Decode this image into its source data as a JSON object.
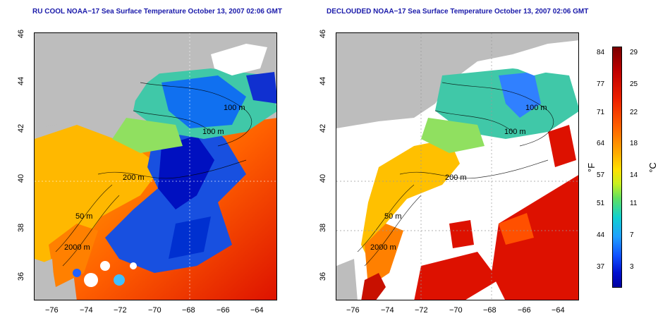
{
  "panels": [
    {
      "title": "RU COOL NOAA−17 Sea Surface Temperature October 13, 2007 02:06 GMT"
    },
    {
      "title": "DECLOUDED NOAA−17 Sea Surface Temperature October 13, 2007 02:06 GMT"
    }
  ],
  "x_ticks": [
    "−76",
    "−74",
    "−72",
    "−70",
    "−68",
    "−66",
    "−64"
  ],
  "y_ticks": [
    "46",
    "44",
    "42",
    "40",
    "38",
    "36"
  ],
  "contours": {
    "c100": "100 m",
    "c100b": "100 m",
    "c200": "200 m",
    "c50": "50 m",
    "c2000": "2000 m"
  },
  "colorbar": {
    "fahrenheit_label": "°F",
    "celsius_label": "°C",
    "fahrenheit_ticks": [
      "84",
      "77",
      "71",
      "64",
      "57",
      "51",
      "44",
      "37"
    ],
    "celsius_ticks": [
      "29",
      "25",
      "22",
      "18",
      "14",
      "11",
      "7",
      "3"
    ]
  },
  "colors": {
    "land": "#bdbdbd",
    "title": "#1a1aaa"
  }
}
